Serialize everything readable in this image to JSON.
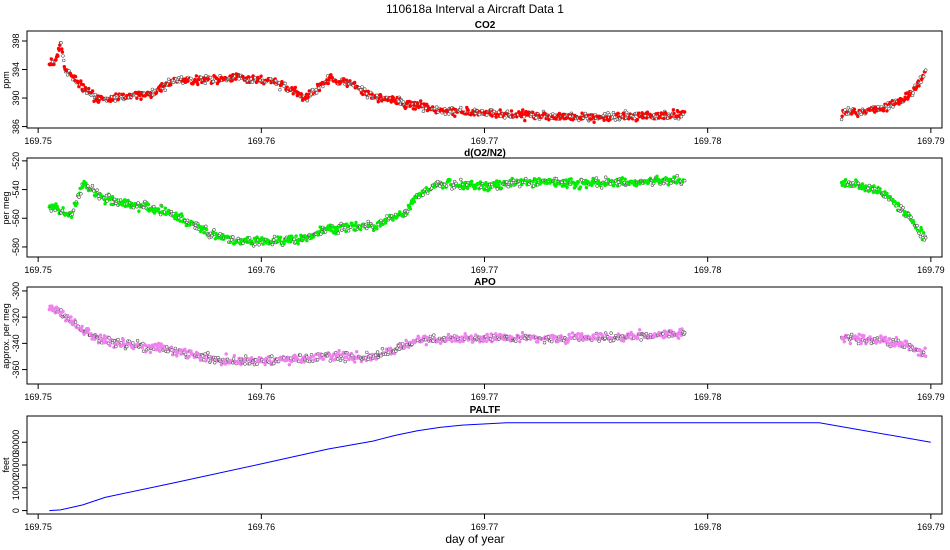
{
  "figure_title": "110618a   Interval a Aircraft Data 1",
  "xlabel": "day of year",
  "chart_data": [
    {
      "type": "scatter",
      "title": "CO2",
      "ylabel": "ppm",
      "xlim": [
        169.7495,
        169.7905
      ],
      "ylim": [
        385.8,
        399.4
      ],
      "xticks": [
        "169.75",
        "169.76",
        "169.77",
        "169.78",
        "169.79"
      ],
      "yticks": [
        "386",
        "390",
        "394",
        "398"
      ],
      "grid": false,
      "color": "#ff0000",
      "x": [
        169.7505,
        169.7508,
        169.751,
        169.7512,
        169.7515,
        169.752,
        169.7525,
        169.753,
        169.754,
        169.755,
        169.756,
        169.757,
        169.758,
        169.759,
        169.7605,
        169.762,
        169.763,
        169.764,
        169.765,
        169.766,
        169.7675,
        169.769,
        169.771,
        169.773,
        169.775,
        169.777,
        169.779,
        169.786,
        169.787,
        169.788,
        169.789,
        169.7895,
        169.7898
      ],
      "y": [
        395.2,
        395.0,
        397.8,
        394.2,
        393.2,
        391.5,
        390.2,
        389.8,
        390.2,
        390.6,
        392.3,
        392.6,
        392.7,
        392.8,
        392.4,
        390.0,
        392.7,
        392.0,
        390.2,
        389.6,
        388.6,
        388.0,
        387.7,
        387.5,
        387.3,
        387.4,
        387.7,
        387.8,
        388.2,
        388.7,
        390.3,
        392.3,
        393.5
      ]
    },
    {
      "type": "scatter",
      "title": "d(O2/N2)",
      "ylabel": "per meg",
      "xlim": [
        169.7495,
        169.7905
      ],
      "ylim": [
        -587,
        -518
      ],
      "xticks": [
        "169.75",
        "169.76",
        "169.77",
        "169.78",
        "169.79"
      ],
      "yticks": [
        "-580",
        "-560",
        "-540",
        "-520"
      ],
      "grid": false,
      "color": "#00ee00",
      "x": [
        169.7505,
        169.751,
        169.7515,
        169.7518,
        169.752,
        169.7522,
        169.753,
        169.754,
        169.755,
        169.756,
        169.757,
        169.758,
        169.759,
        169.7605,
        169.7615,
        169.763,
        169.764,
        169.765,
        169.7665,
        169.767,
        169.768,
        169.769,
        169.77,
        169.771,
        169.772,
        169.774,
        169.776,
        169.778,
        169.779,
        169.786,
        169.787,
        169.788,
        169.789,
        169.7895,
        169.7898
      ],
      "y": [
        -550,
        -555,
        -558,
        -545,
        -535,
        -538,
        -546,
        -550,
        -552,
        -557,
        -565,
        -572,
        -576,
        -576,
        -575,
        -568,
        -566,
        -565,
        -556,
        -544,
        -536,
        -537,
        -537,
        -536,
        -534,
        -536,
        -535,
        -534,
        -534,
        -535,
        -538,
        -544,
        -558,
        -570,
        -574
      ]
    },
    {
      "type": "scatter",
      "title": "APO",
      "ylabel": "approx. per meg",
      "xlim": [
        169.7495,
        169.7905
      ],
      "ylim": [
        -371,
        -297
      ],
      "xticks": [
        "169.75",
        "169.76",
        "169.77",
        "169.78",
        "169.79"
      ],
      "yticks": [
        "-360",
        "-340",
        "-320",
        "-300"
      ],
      "grid": false,
      "color": "#ee82ee",
      "x": [
        169.7505,
        169.751,
        169.7515,
        169.752,
        169.7525,
        169.753,
        169.754,
        169.755,
        169.756,
        169.757,
        169.758,
        169.759,
        169.7605,
        169.7615,
        169.763,
        169.764,
        169.765,
        169.766,
        169.767,
        169.768,
        169.77,
        169.772,
        169.774,
        169.776,
        169.778,
        169.779,
        169.786,
        169.787,
        169.788,
        169.789,
        169.7898
      ],
      "y": [
        -312,
        -316,
        -324,
        -330,
        -335,
        -338,
        -341,
        -343,
        -345,
        -349,
        -352,
        -353,
        -353,
        -352,
        -350,
        -350,
        -350,
        -344,
        -338,
        -337,
        -336,
        -336,
        -336,
        -335,
        -333,
        -333,
        -336,
        -337,
        -338,
        -342,
        -348
      ]
    },
    {
      "type": "line",
      "title": "PALTF",
      "ylabel": "feet",
      "xlim": [
        169.7495,
        169.7905
      ],
      "ylim": [
        -1500,
        41500
      ],
      "xticks": [
        "169.75",
        "169.76",
        "169.77",
        "169.78",
        "169.79"
      ],
      "yticks": [
        "0",
        "10000",
        "20000",
        "30000"
      ],
      "grid": false,
      "color": "#0000ff",
      "x": [
        169.7505,
        169.751,
        169.752,
        169.753,
        169.756,
        169.76,
        169.763,
        169.765,
        169.766,
        169.767,
        169.768,
        169.769,
        169.771,
        169.785,
        169.79
      ],
      "y": [
        0,
        300,
        2500,
        5800,
        12000,
        20500,
        27000,
        30500,
        33000,
        35000,
        36500,
        37500,
        38500,
        38500,
        30000
      ]
    }
  ]
}
